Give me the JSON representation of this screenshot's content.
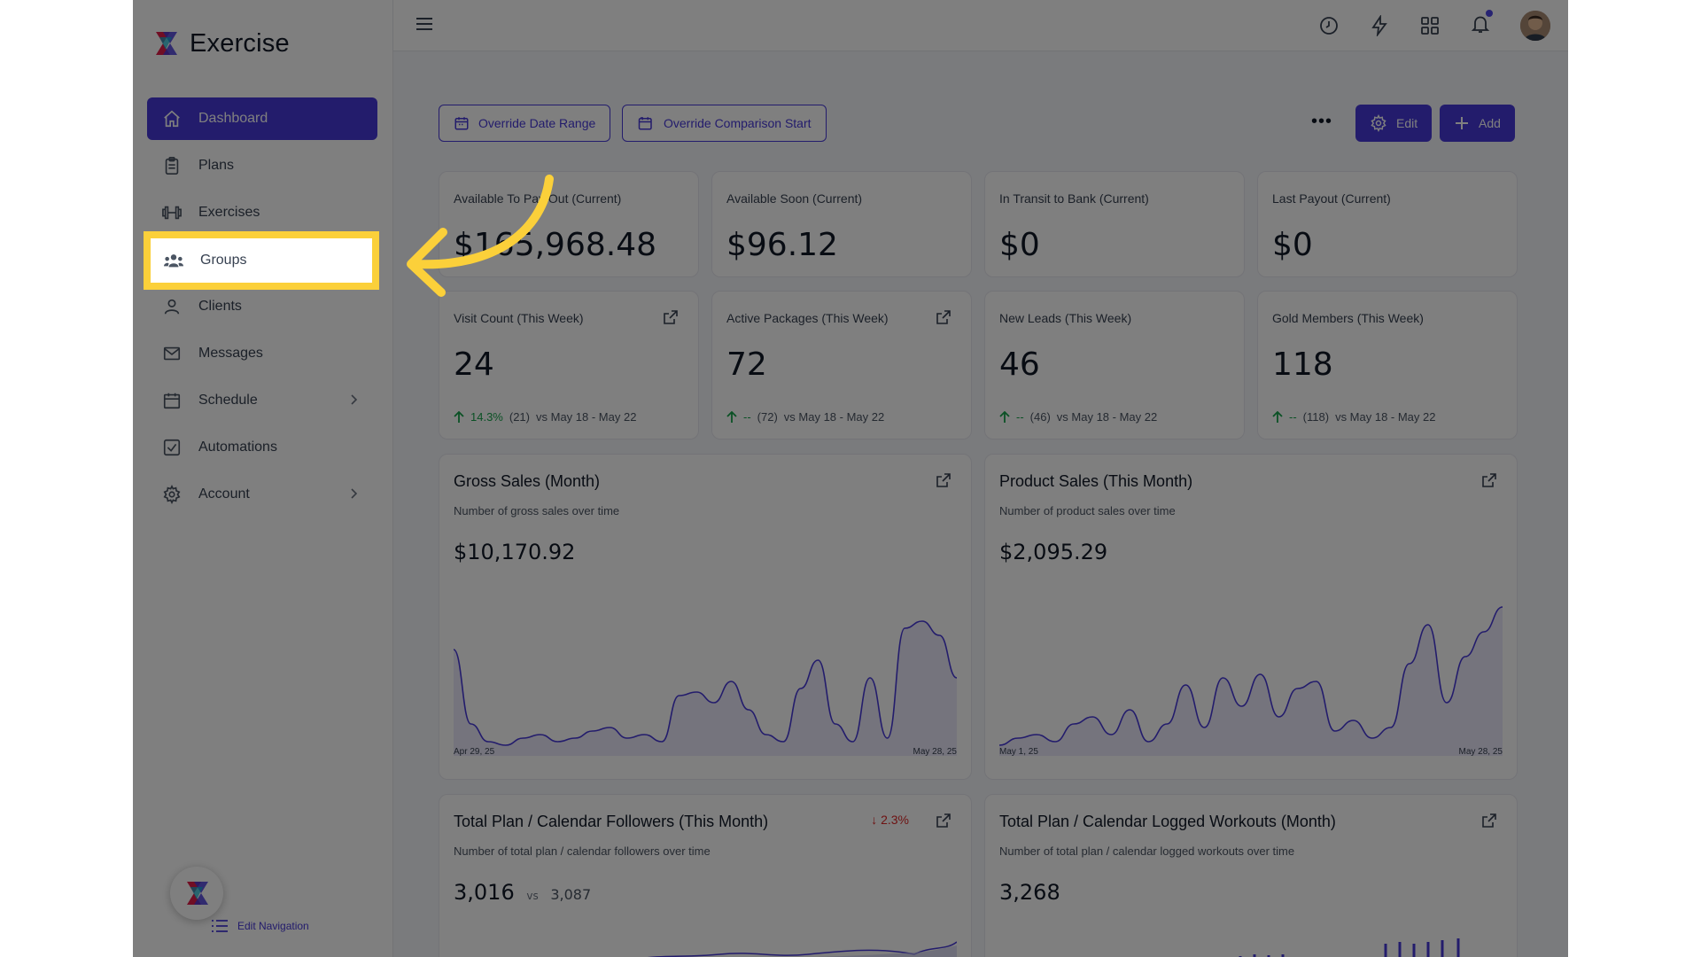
{
  "app": {
    "name": "Exercise"
  },
  "sidebar": {
    "items": [
      {
        "label": "Dashboard",
        "icon": "home-icon",
        "active": true
      },
      {
        "label": "Plans",
        "icon": "clipboard-icon"
      },
      {
        "label": "Exercises",
        "icon": "dumbbell-icon"
      },
      {
        "label": "Groups",
        "icon": "users-icon"
      },
      {
        "label": "Clients",
        "icon": "user-icon"
      },
      {
        "label": "Messages",
        "icon": "mail-icon"
      },
      {
        "label": "Schedule",
        "icon": "calendar-icon",
        "has_submenu": true
      },
      {
        "label": "Automations",
        "icon": "check-square-icon"
      },
      {
        "label": "Account",
        "icon": "gear-icon",
        "has_submenu": true
      }
    ],
    "edit_navigation": "Edit Navigation"
  },
  "toolbar": {
    "override_date_range": "Override Date Range",
    "override_comparison_start": "Override Comparison Start",
    "more": "•••",
    "edit": "Edit",
    "add": "Add"
  },
  "stats_row1": [
    {
      "label": "Available To Pay Out (Current)",
      "value": "$165,968.48"
    },
    {
      "label": "Available Soon (Current)",
      "value": "$96.12"
    },
    {
      "label": "In Transit to Bank (Current)",
      "value": "$0"
    },
    {
      "label": "Last Payout (Current)",
      "value": "$0"
    }
  ],
  "stats_row2": [
    {
      "label": "Visit Count (This Week)",
      "value": "24",
      "change": "14.3%",
      "prev": "(21)",
      "compare": "vs May 18 - May 22"
    },
    {
      "label": "Active Packages (This Week)",
      "value": "72",
      "change": "--",
      "prev": "(72)",
      "compare": "vs May 18 - May 22"
    },
    {
      "label": "New Leads (This Week)",
      "value": "46",
      "change": "--",
      "prev": "(46)",
      "compare": "vs May 18 - May 22"
    },
    {
      "label": "Gold Members (This Week)",
      "value": "118",
      "change": "--",
      "prev": "(118)",
      "compare": "vs May 18 - May 22"
    }
  ],
  "charts": [
    {
      "title": "Gross Sales (Month)",
      "subtitle": "Number of gross sales over time",
      "total": "$10,170.92",
      "x_start": "Apr 29, 25",
      "x_end": "May 28, 25"
    },
    {
      "title": "Product Sales (This Month)",
      "subtitle": "Number of product sales over time",
      "total": "$2,095.29",
      "x_start": "May 1, 25",
      "x_end": "May 28, 25"
    },
    {
      "title": "Total Plan / Calendar Followers (This Month)",
      "subtitle": "Number of total plan / calendar followers over time",
      "total": "3,016",
      "vs": "vs",
      "prev": "3,087",
      "change": "2.3%"
    },
    {
      "title": "Total Plan / Calendar Logged Workouts (Month)",
      "subtitle": "Number of total plan / calendar logged workouts over time",
      "total": "3,268"
    }
  ],
  "chart_data": [
    {
      "type": "area",
      "title": "Gross Sales (Month)",
      "x": [
        "Apr 29, 25",
        "",
        "",
        "",
        "",
        "",
        "",
        "",
        "",
        "",
        "",
        "",
        "",
        "",
        "",
        "",
        "",
        "",
        "",
        "",
        "",
        "",
        "",
        "",
        "",
        "",
        "",
        "",
        "",
        "May 28, 25"
      ],
      "values": [
        60,
        18,
        8,
        6,
        10,
        12,
        8,
        10,
        14,
        16,
        10,
        12,
        8,
        34,
        36,
        30,
        42,
        26,
        12,
        8,
        38,
        54,
        18,
        8,
        44,
        10,
        72,
        76,
        68,
        44
      ],
      "color": "#4638d8"
    },
    {
      "type": "area",
      "title": "Product Sales (This Month)",
      "x": [
        "May 1, 25",
        "",
        "",
        "",
        "",
        "",
        "",
        "",
        "",
        "",
        "",
        "",
        "",
        "",
        "",
        "",
        "",
        "",
        "",
        "",
        "",
        "",
        "",
        "",
        "",
        "",
        "",
        "May 28, 25"
      ],
      "values": [
        6,
        10,
        12,
        8,
        18,
        22,
        12,
        26,
        8,
        18,
        40,
        16,
        44,
        28,
        46,
        22,
        38,
        42,
        14,
        20,
        10,
        16,
        52,
        74,
        30,
        56,
        70,
        84
      ],
      "color": "#4638d8"
    }
  ],
  "colors": {
    "accent": "#4638d8",
    "highlight": "#fbd03a",
    "positive": "#16a34a",
    "negative": "#dc2626"
  }
}
